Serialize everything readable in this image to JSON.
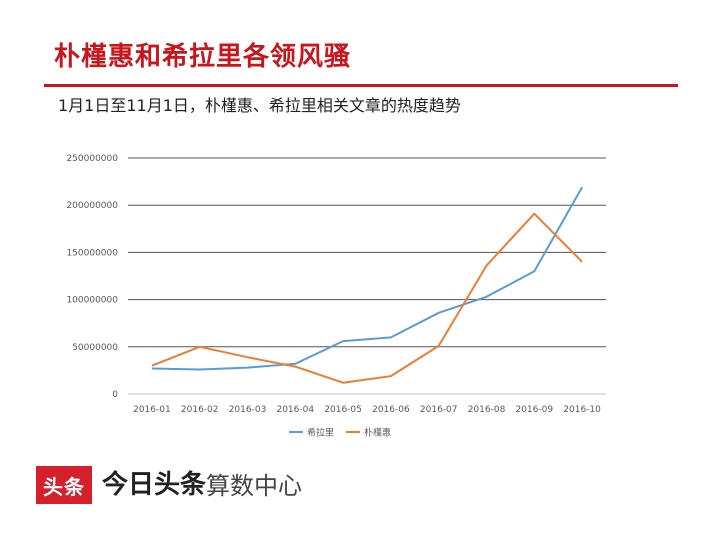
{
  "page": {
    "title": "朴槿惠和希拉里各领风骚",
    "subtitle": "1月1日至11月1日，朴槿惠、希拉里相关文章的热度趋势"
  },
  "colors": {
    "title": "#c8161d",
    "grid": "#555555"
  },
  "chart_data": {
    "type": "line",
    "title": "",
    "xlabel": "",
    "ylabel": "",
    "categories": [
      "2016-01",
      "2016-02",
      "2016-03",
      "2016-04",
      "2016-05",
      "2016-06",
      "2016-07",
      "2016-08",
      "2016-09",
      "2016-10"
    ],
    "y_ticks": [
      0,
      50000000,
      100000000,
      150000000,
      200000000,
      250000000
    ],
    "ylim": [
      0,
      250000000
    ],
    "grid": true,
    "legend_position": "bottom",
    "series": [
      {
        "name": "希拉里",
        "color": "#5b9bd5",
        "values": [
          27000000,
          26000000,
          28000000,
          32000000,
          56000000,
          60000000,
          86000000,
          103000000,
          130000000,
          219000000
        ]
      },
      {
        "name": "朴槿惠",
        "color": "#ed7d31",
        "values": [
          30000000,
          50000000,
          39000000,
          29000000,
          12000000,
          19000000,
          51000000,
          136000000,
          191000000,
          140000000
        ]
      }
    ]
  },
  "footer": {
    "brand_box": "头条",
    "brand_name": "今日头条",
    "brand_center": "算数中心"
  }
}
